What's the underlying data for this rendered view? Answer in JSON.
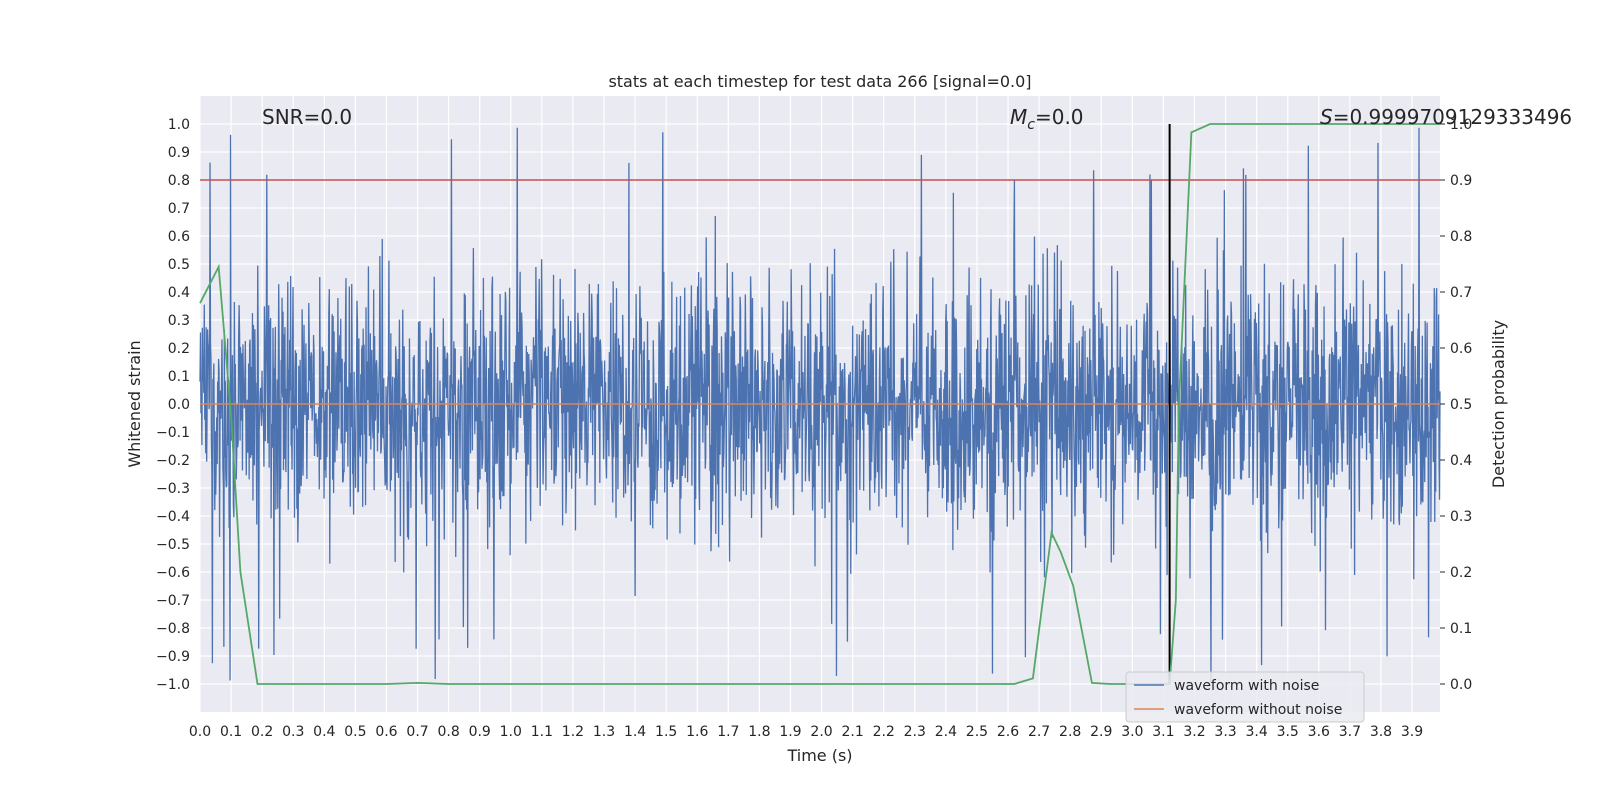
{
  "chart_data": {
    "type": "line",
    "title": "stats at each timestep for test data 266 [signal=0.0]",
    "xlabel": "Time (s)",
    "ylabel": "Whitened strain",
    "ylabel_right": "Detection probability",
    "xlim": [
      0.0,
      3.99
    ],
    "ylim": [
      -1.1,
      1.1
    ],
    "ylim_right": [
      -0.05,
      1.05
    ],
    "x_ticks": [
      "0.0",
      "0.1",
      "0.2",
      "0.3",
      "0.4",
      "0.5",
      "0.6",
      "0.7",
      "0.8",
      "0.9",
      "1.0",
      "1.1",
      "1.2",
      "1.3",
      "1.4",
      "1.5",
      "1.6",
      "1.7",
      "1.8",
      "1.9",
      "2.0",
      "2.1",
      "2.2",
      "2.3",
      "2.4",
      "2.5",
      "2.6",
      "2.7",
      "2.8",
      "2.9",
      "3.0",
      "3.1",
      "3.2",
      "3.3",
      "3.4",
      "3.5",
      "3.6",
      "3.7",
      "3.8",
      "3.9"
    ],
    "y_ticks": [
      "1.0",
      "0.9",
      "0.8",
      "0.7",
      "0.6",
      "0.5",
      "0.4",
      "0.3",
      "0.2",
      "0.1",
      "0.0",
      "−0.1",
      "−0.2",
      "−0.3",
      "−0.4",
      "−0.5",
      "−0.6",
      "−0.7",
      "−0.8",
      "−0.9",
      "−1.0"
    ],
    "y_ticks_right": [
      "1.0",
      "0.9",
      "0.8",
      "0.7",
      "0.6",
      "0.5",
      "0.4",
      "0.3",
      "0.2",
      "0.1",
      "0.0"
    ],
    "grid": true,
    "legend_position": "bottom-right",
    "annotations": {
      "snr": "SNR=0.0",
      "mc_symbol": "M",
      "mc_sub": "c",
      "mc_value": "=0.0",
      "s_symbol": "S",
      "s_value": "=0.9999709129333496"
    },
    "threshold_line": {
      "y": 0.8,
      "color": "#c44e52"
    },
    "marker_line": {
      "x": 3.12,
      "color": "#000000"
    },
    "series": [
      {
        "name": "waveform with noise",
        "color": "#4c72b0",
        "amplitude_envelope": [
          -1.0,
          1.0
        ]
      },
      {
        "name": "waveform without noise",
        "color": "#dd8452",
        "values_constant": 0.0
      },
      {
        "color": "#55a868",
        "axis": "right",
        "x": [
          0.0,
          0.06,
          0.1,
          0.13,
          0.185,
          0.25,
          0.6,
          0.7,
          0.8,
          2.62,
          2.68,
          2.74,
          2.77,
          2.81,
          2.87,
          2.93,
          3.12,
          3.14,
          3.15,
          3.19,
          3.25,
          3.99
        ],
        "y": [
          0.68,
          0.745,
          0.48,
          0.2,
          0.0,
          0.0,
          0.0,
          0.002,
          0.0,
          0.0,
          0.01,
          0.27,
          0.235,
          0.175,
          0.002,
          0.0,
          0.0,
          0.15,
          0.5,
          0.985,
          1.0,
          1.0
        ]
      }
    ]
  }
}
